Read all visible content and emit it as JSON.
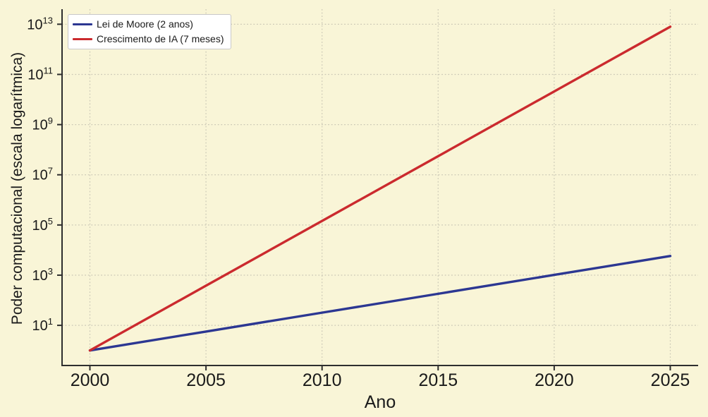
{
  "figure": {
    "background_color": "#f9f5d7"
  },
  "chart_data": {
    "type": "line",
    "title": "",
    "xlabel": "Ano",
    "ylabel": "Poder computacional (escala logarítmica)",
    "x_ticks": [
      2000,
      2005,
      2010,
      2015,
      2020,
      2025
    ],
    "y_tick_base": "10",
    "y_tick_exponents": [
      1,
      3,
      5,
      7,
      9,
      11,
      13
    ],
    "x_range": [
      1998.8,
      2026.2
    ],
    "y_log10_range": [
      -0.6,
      13.6
    ],
    "y_scale": "log",
    "grid": "dotted",
    "legend_position": "upper-left",
    "x": [
      2000,
      2005,
      2010,
      2015,
      2020,
      2025
    ],
    "series": [
      {
        "name": "Lei de Moore (2 anos)",
        "color": "#2c3792",
        "doubling": "every 2 years",
        "values": [
          1,
          5.66,
          32,
          181,
          1024,
          5793
        ]
      },
      {
        "name": "Crescimento de IA (7 meses)",
        "color": "#cb2a2e",
        "doubling": "every 7 months",
        "values": [
          1,
          380,
          144700,
          55070000,
          20970000000,
          7970000000000
        ]
      }
    ],
    "colors": {
      "grid": "#cbc8b6",
      "spine": "#2e2e2e",
      "tick_text": "#1a1a1a"
    }
  }
}
